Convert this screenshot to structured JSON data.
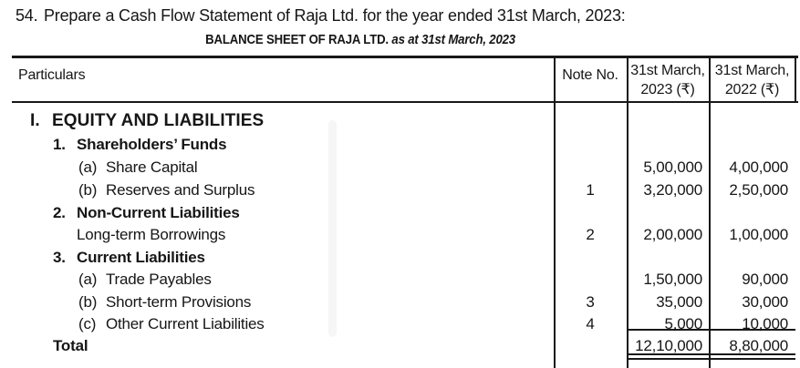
{
  "colors": {
    "ink": "#161616",
    "line": "#181818",
    "paper": "#ffffff"
  },
  "question": {
    "number": "54.",
    "text": "Prepare a Cash Flow Statement of Raja Ltd. for the year ended 31st March, 2023:"
  },
  "table": {
    "title_main": "BALANCE SHEET OF RAJA LTD.",
    "title_sub": " as at 31st March, 2023",
    "columns": {
      "particulars": "Particulars",
      "note": "Note No.",
      "y2023_line1": "31st March,",
      "y2023_line2": "2023 (₹)",
      "y2022_line1": "31st March,",
      "y2022_line2": "2022 (₹)"
    },
    "rows": [
      {
        "prefix": "I.",
        "label": "EQUITY AND LIABILITIES"
      },
      {
        "prefix": "1.",
        "label": "Shareholders’ Funds"
      },
      {
        "prefix": "(a)",
        "label": "Share Capital",
        "amount_2023": "5,00,000",
        "amount_2022": "4,00,000"
      },
      {
        "prefix": "(b)",
        "label": "Reserves and Surplus",
        "note": "1",
        "amount_2023": "3,20,000",
        "amount_2022": "2,50,000"
      },
      {
        "prefix": "2.",
        "label": "Non-Current Liabilities"
      },
      {
        "prefix": "",
        "label": "Long-term Borrowings",
        "note": "2",
        "amount_2023": "2,00,000",
        "amount_2022": "1,00,000"
      },
      {
        "prefix": "3.",
        "label": "Current Liabilities"
      },
      {
        "prefix": "(a)",
        "label": "Trade Payables",
        "amount_2023": "1,50,000",
        "amount_2022": "90,000"
      },
      {
        "prefix": "(b)",
        "label": "Short-term Provisions",
        "note": "3",
        "amount_2023": "35,000",
        "amount_2022": "30,000"
      },
      {
        "prefix": "(c)",
        "label": "Other Current Liabilities",
        "note": "4",
        "amount_2023": "5,000",
        "amount_2022": "10,000"
      },
      {
        "prefix": "",
        "label": "Total",
        "amount_2023": "12,10,000",
        "amount_2022": "8,80,000"
      }
    ]
  }
}
